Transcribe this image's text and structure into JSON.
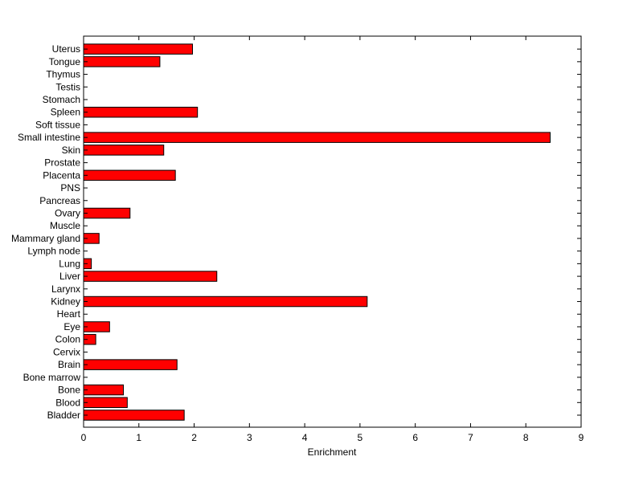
{
  "chart_data": {
    "type": "bar",
    "orientation": "horizontal",
    "title": "",
    "xlabel": "Enrichment",
    "ylabel": "",
    "xlim": [
      0,
      9
    ],
    "xticks": [
      "0",
      "1",
      "2",
      "3",
      "4",
      "5",
      "6",
      "7",
      "8",
      "9"
    ],
    "grid": false,
    "bar_color": "#ff0000",
    "categories": [
      "Bladder",
      "Blood",
      "Bone",
      "Bone marrow",
      "Brain",
      "Cervix",
      "Colon",
      "Eye",
      "Heart",
      "Kidney",
      "Larynx",
      "Liver",
      "Lung",
      "Lymph node",
      "Mammary gland",
      "Muscle",
      "Ovary",
      "Pancreas",
      "PNS",
      "Placenta",
      "Prostate",
      "Skin",
      "Small intestine",
      "Soft tissue",
      "Spleen",
      "Stomach",
      "Testis",
      "Thymus",
      "Tongue",
      "Uterus"
    ],
    "values": [
      1.82,
      0.79,
      0.72,
      0,
      1.69,
      0,
      0.22,
      0.47,
      0,
      5.13,
      0,
      2.41,
      0.14,
      0,
      0.28,
      0,
      0.84,
      0,
      0,
      1.66,
      0,
      1.45,
      8.44,
      0,
      2.06,
      0,
      0,
      0,
      1.38,
      1.97
    ]
  }
}
